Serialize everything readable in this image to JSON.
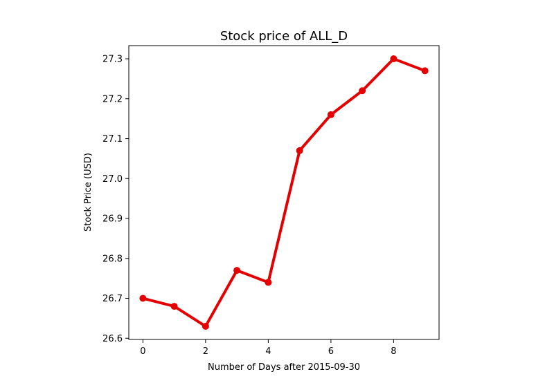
{
  "chart_data": {
    "type": "line",
    "title": "Stock price of ALL_D",
    "xlabel": "Number of Days after 2015-09-30",
    "ylabel": "Stock Price (USD)",
    "x": [
      0,
      1,
      2,
      3,
      4,
      5,
      6,
      7,
      8,
      9
    ],
    "series": [
      {
        "values": [
          26.7,
          26.68,
          26.63,
          26.77,
          26.74,
          27.07,
          27.16,
          27.22,
          27.3,
          27.27
        ]
      }
    ],
    "xlim": [
      -0.45,
      9.45
    ],
    "ylim": [
      26.597,
      27.333
    ],
    "xticks": [
      0,
      2,
      4,
      6,
      8
    ],
    "yticks": [
      26.6,
      26.7,
      26.8,
      26.9,
      27.0,
      27.1,
      27.2,
      27.3
    ],
    "xtick_labels": [
      "0",
      "2",
      "4",
      "6",
      "8"
    ],
    "ytick_labels": [
      "26.6",
      "26.7",
      "26.8",
      "26.9",
      "27.0",
      "27.1",
      "27.2",
      "27.3"
    ],
    "grid": false,
    "legend": "none",
    "line_color": "#e50000",
    "marker": "circle"
  }
}
